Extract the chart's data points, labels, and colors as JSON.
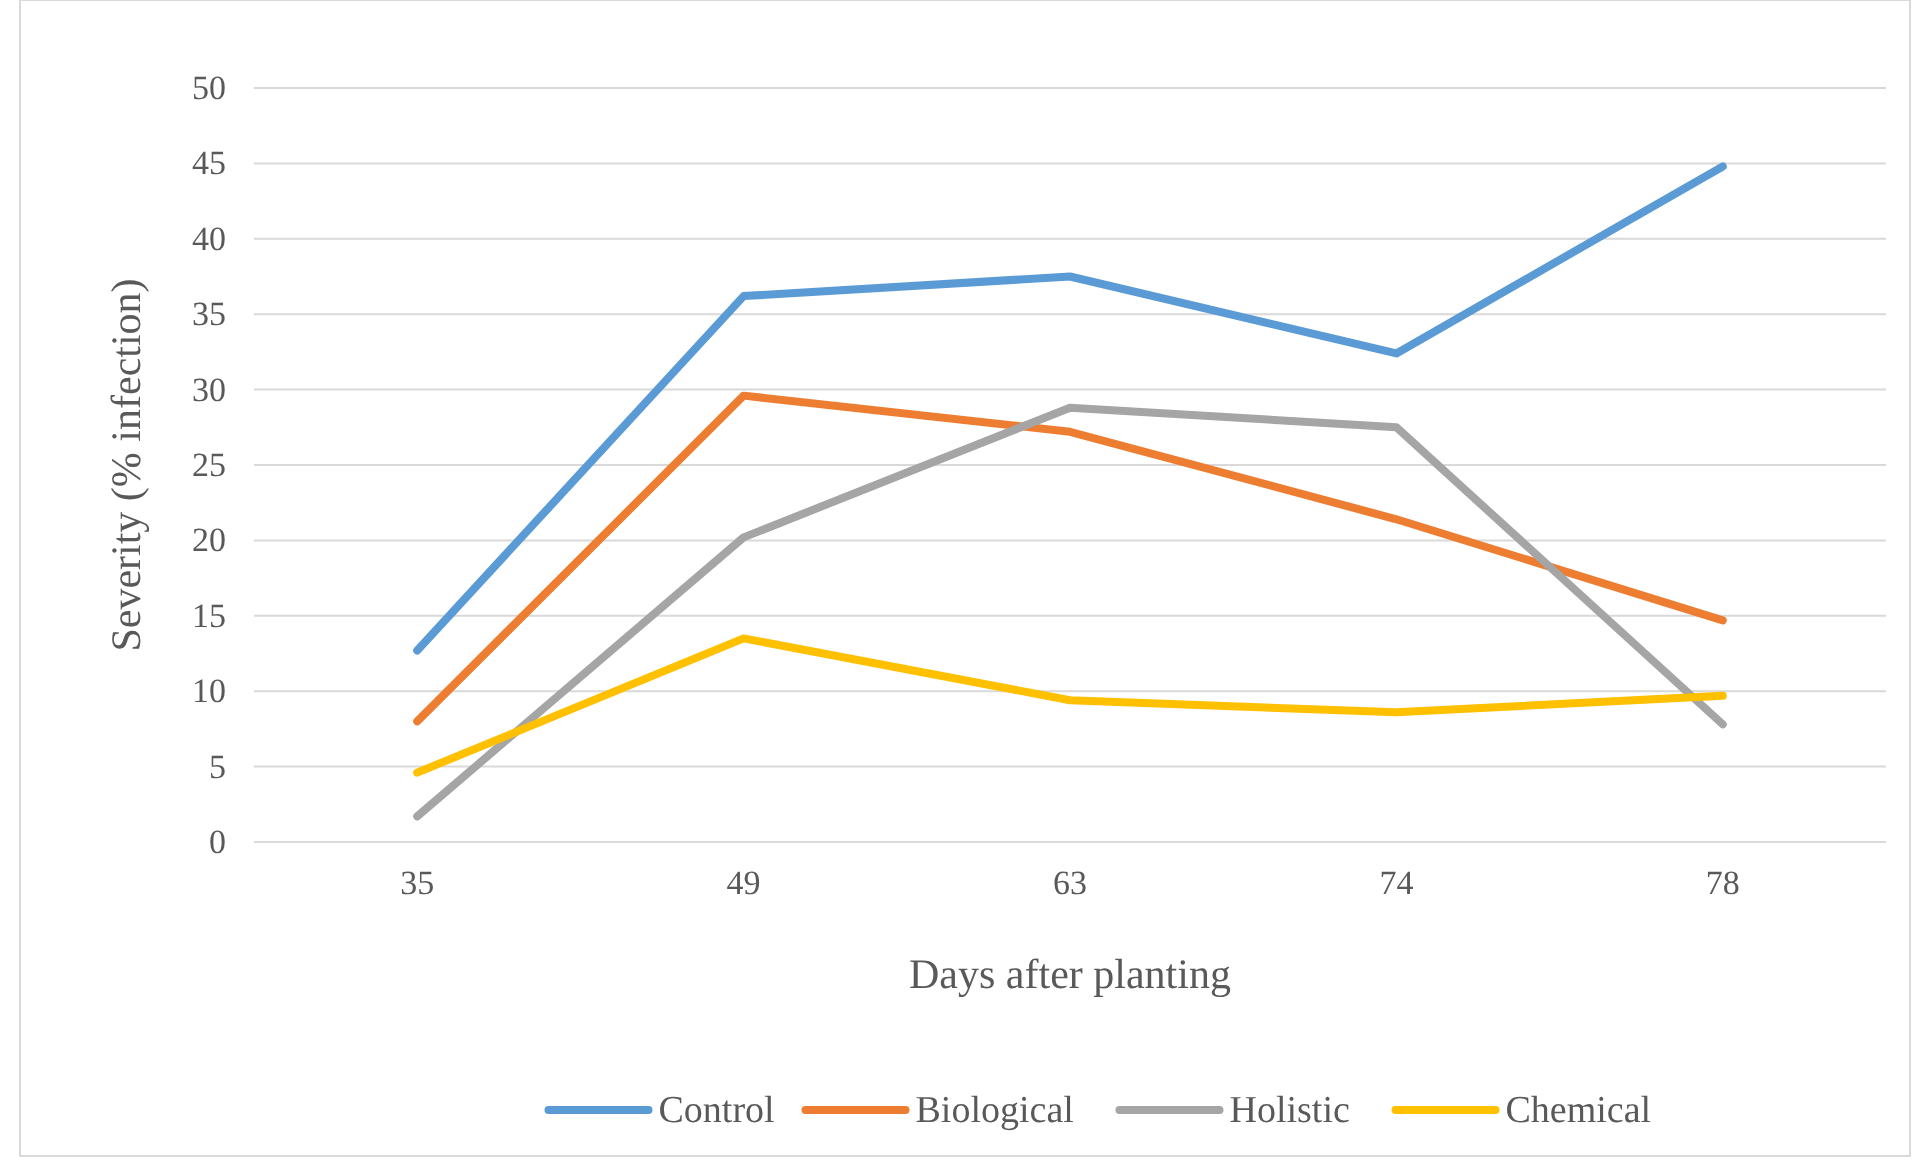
{
  "chart_data": {
    "type": "line",
    "xlabel": "Days after planting",
    "ylabel": "Severity (% infection)",
    "categories": [
      "35",
      "49",
      "63",
      "74",
      "78"
    ],
    "series": [
      {
        "name": "Control",
        "color": "#5b9bd5",
        "values": [
          12.7,
          36.2,
          37.5,
          32.4,
          44.8
        ]
      },
      {
        "name": "Biological",
        "color": "#ed7d31",
        "values": [
          8.0,
          29.6,
          27.2,
          21.4,
          14.7
        ]
      },
      {
        "name": "Holistic",
        "color": "#a5a5a5",
        "values": [
          1.7,
          20.2,
          28.8,
          27.5,
          7.8
        ]
      },
      {
        "name": "Chemical",
        "color": "#ffc000",
        "values": [
          4.6,
          13.5,
          9.4,
          8.6,
          9.7
        ]
      }
    ],
    "ylim": [
      0,
      50
    ],
    "yticks": [
      0,
      5,
      10,
      15,
      20,
      25,
      30,
      35,
      40,
      45,
      50
    ],
    "grid": "y",
    "legend": "bottom",
    "marker": "none",
    "line_style": "solid"
  }
}
